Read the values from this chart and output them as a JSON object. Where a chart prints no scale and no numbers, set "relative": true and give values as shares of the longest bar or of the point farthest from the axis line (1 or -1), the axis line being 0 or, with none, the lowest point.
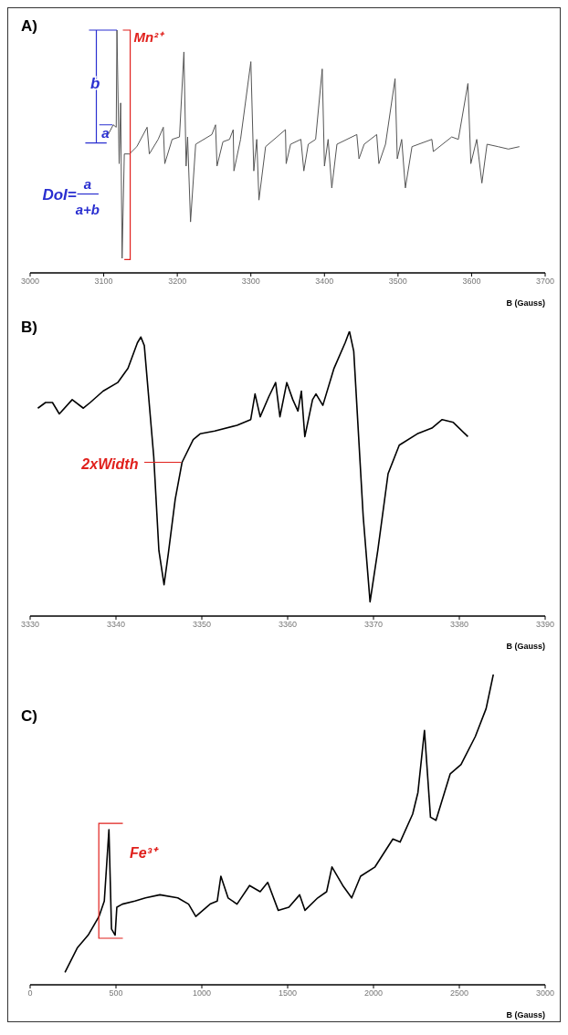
{
  "chart_data": [
    {
      "type": "line",
      "title": "A)",
      "xlabel": "B (Gauss)",
      "relative": true,
      "color": "#555555",
      "xlim": [
        3000,
        3700
      ],
      "xticks": [
        3000,
        3100,
        3200,
        3300,
        3400,
        3500,
        3600,
        3700
      ],
      "x": [
        3106,
        3113,
        3117,
        3118,
        3121,
        3123,
        3125,
        3128,
        3135,
        3145,
        3159,
        3162,
        3174,
        3181,
        3183,
        3193,
        3203,
        3209,
        3212,
        3214,
        3218,
        3225,
        3247,
        3252,
        3254,
        3262,
        3271,
        3276,
        3277,
        3286,
        3300,
        3304,
        3308,
        3311,
        3320,
        3347,
        3348,
        3354,
        3368,
        3372,
        3378,
        3388,
        3397,
        3400,
        3405,
        3410,
        3417,
        3444,
        3447,
        3454,
        3471,
        3474,
        3483,
        3496,
        3499,
        3505,
        3510,
        3519,
        3546,
        3548,
        3573,
        3582,
        3595,
        3599,
        3607,
        3614,
        3621,
        3636,
        3650,
        3665
      ],
      "values": [
        0.57,
        0.61,
        0.6,
        1.0,
        0.45,
        0.7,
        0.06,
        0.49,
        0.49,
        0.52,
        0.6,
        0.49,
        0.55,
        0.6,
        0.45,
        0.55,
        0.56,
        0.91,
        0.44,
        0.56,
        0.21,
        0.53,
        0.57,
        0.61,
        0.44,
        0.54,
        0.55,
        0.59,
        0.42,
        0.55,
        0.87,
        0.42,
        0.55,
        0.3,
        0.52,
        0.59,
        0.45,
        0.53,
        0.55,
        0.42,
        0.53,
        0.55,
        0.84,
        0.44,
        0.55,
        0.35,
        0.53,
        0.57,
        0.47,
        0.53,
        0.57,
        0.45,
        0.53,
        0.8,
        0.47,
        0.55,
        0.35,
        0.52,
        0.55,
        0.5,
        0.56,
        0.55,
        0.78,
        0.45,
        0.55,
        0.37,
        0.53,
        0.52,
        0.51,
        0.52
      ],
      "annotations": [
        "Mn²⁺",
        "b",
        "a",
        "DoI=",
        "a",
        "a+b"
      ]
    },
    {
      "type": "line",
      "title": "B)",
      "xlabel": "B (Gauss)",
      "relative": true,
      "color": "#000000",
      "xlim": [
        3330,
        3390
      ],
      "xticks": [
        3330,
        3340,
        3350,
        3360,
        3370,
        3380,
        3390
      ],
      "x": [
        3330.9,
        3331.8,
        3332.6,
        3333.4,
        3334.9,
        3336.2,
        3337.0,
        3338.5,
        3340.2,
        3341.4,
        3342.5,
        3342.9,
        3343.3,
        3344.4,
        3345.0,
        3345.6,
        3346.1,
        3346.9,
        3347.7,
        3349.0,
        3349.8,
        3351.5,
        3354.1,
        3355.7,
        3356.2,
        3356.8,
        3357.8,
        3358.6,
        3359.1,
        3359.9,
        3360.6,
        3361.2,
        3361.6,
        3362.0,
        3362.9,
        3363.3,
        3364.1,
        3365.4,
        3366.7,
        3367.2,
        3367.7,
        3368.8,
        3369.6,
        3370.5,
        3371.7,
        3373.0,
        3375.1,
        3376.8,
        3378.0,
        3379.3,
        3381.0
      ],
      "values": [
        0.73,
        0.75,
        0.75,
        0.71,
        0.76,
        0.73,
        0.75,
        0.79,
        0.82,
        0.87,
        0.96,
        0.98,
        0.95,
        0.56,
        0.23,
        0.11,
        0.22,
        0.41,
        0.54,
        0.62,
        0.64,
        0.65,
        0.67,
        0.69,
        0.78,
        0.7,
        0.77,
        0.82,
        0.7,
        0.82,
        0.76,
        0.72,
        0.79,
        0.63,
        0.76,
        0.78,
        0.74,
        0.87,
        0.96,
        1.0,
        0.93,
        0.35,
        0.05,
        0.23,
        0.5,
        0.6,
        0.64,
        0.66,
        0.69,
        0.68,
        0.63
      ],
      "annotations": [
        "2xWidth"
      ]
    },
    {
      "type": "line",
      "title": "C)",
      "xlabel": "B (Gauss)",
      "relative": true,
      "color": "#000000",
      "xlim": [
        0,
        3000
      ],
      "xticks": [
        0,
        500,
        1000,
        1500,
        2000,
        2500,
        3000
      ],
      "x": [
        203,
        276,
        338,
        401,
        432,
        459,
        474,
        495,
        505,
        537,
        610,
        672,
        756,
        860,
        923,
        965,
        1048,
        1090,
        1111,
        1153,
        1205,
        1278,
        1340,
        1384,
        1445,
        1507,
        1570,
        1601,
        1675,
        1727,
        1758,
        1821,
        1873,
        1925,
        2009,
        2113,
        2155,
        2228,
        2259,
        2297,
        2332,
        2364,
        2447,
        2510,
        2593,
        2656,
        2698
      ],
      "values": [
        0.04,
        0.12,
        0.16,
        0.22,
        0.27,
        0.5,
        0.18,
        0.16,
        0.25,
        0.26,
        0.27,
        0.28,
        0.29,
        0.28,
        0.26,
        0.22,
        0.26,
        0.27,
        0.35,
        0.28,
        0.26,
        0.32,
        0.3,
        0.33,
        0.24,
        0.25,
        0.29,
        0.24,
        0.28,
        0.3,
        0.38,
        0.32,
        0.28,
        0.35,
        0.38,
        0.47,
        0.46,
        0.55,
        0.62,
        0.82,
        0.54,
        0.53,
        0.68,
        0.71,
        0.8,
        0.89,
        1.0
      ],
      "annotations": [
        "Fe³⁺"
      ]
    }
  ]
}
